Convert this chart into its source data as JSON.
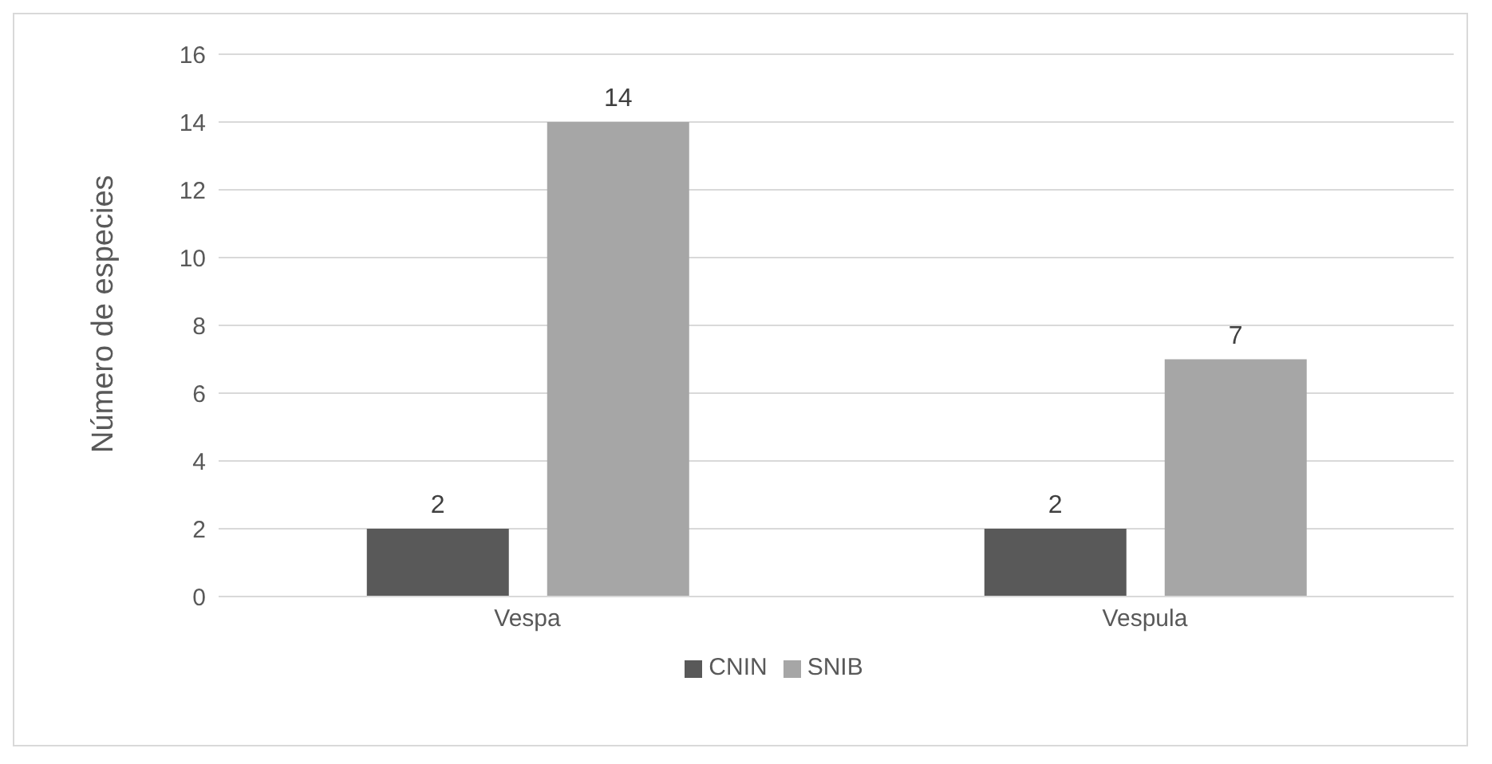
{
  "chart_data": {
    "type": "bar",
    "ylabel": "Número de especies",
    "categories": [
      "Vespa",
      "Vespula"
    ],
    "series": [
      {
        "name": "CNIN",
        "color": "#595959",
        "values": [
          2,
          2
        ]
      },
      {
        "name": "SNIB",
        "color": "#a6a6a6",
        "values": [
          14,
          7
        ]
      }
    ],
    "ylim": [
      0,
      16
    ],
    "yticks": [
      0,
      2,
      4,
      6,
      8,
      10,
      12,
      14,
      16
    ],
    "grid": "y",
    "legend": "bottom",
    "data_labels": true
  }
}
